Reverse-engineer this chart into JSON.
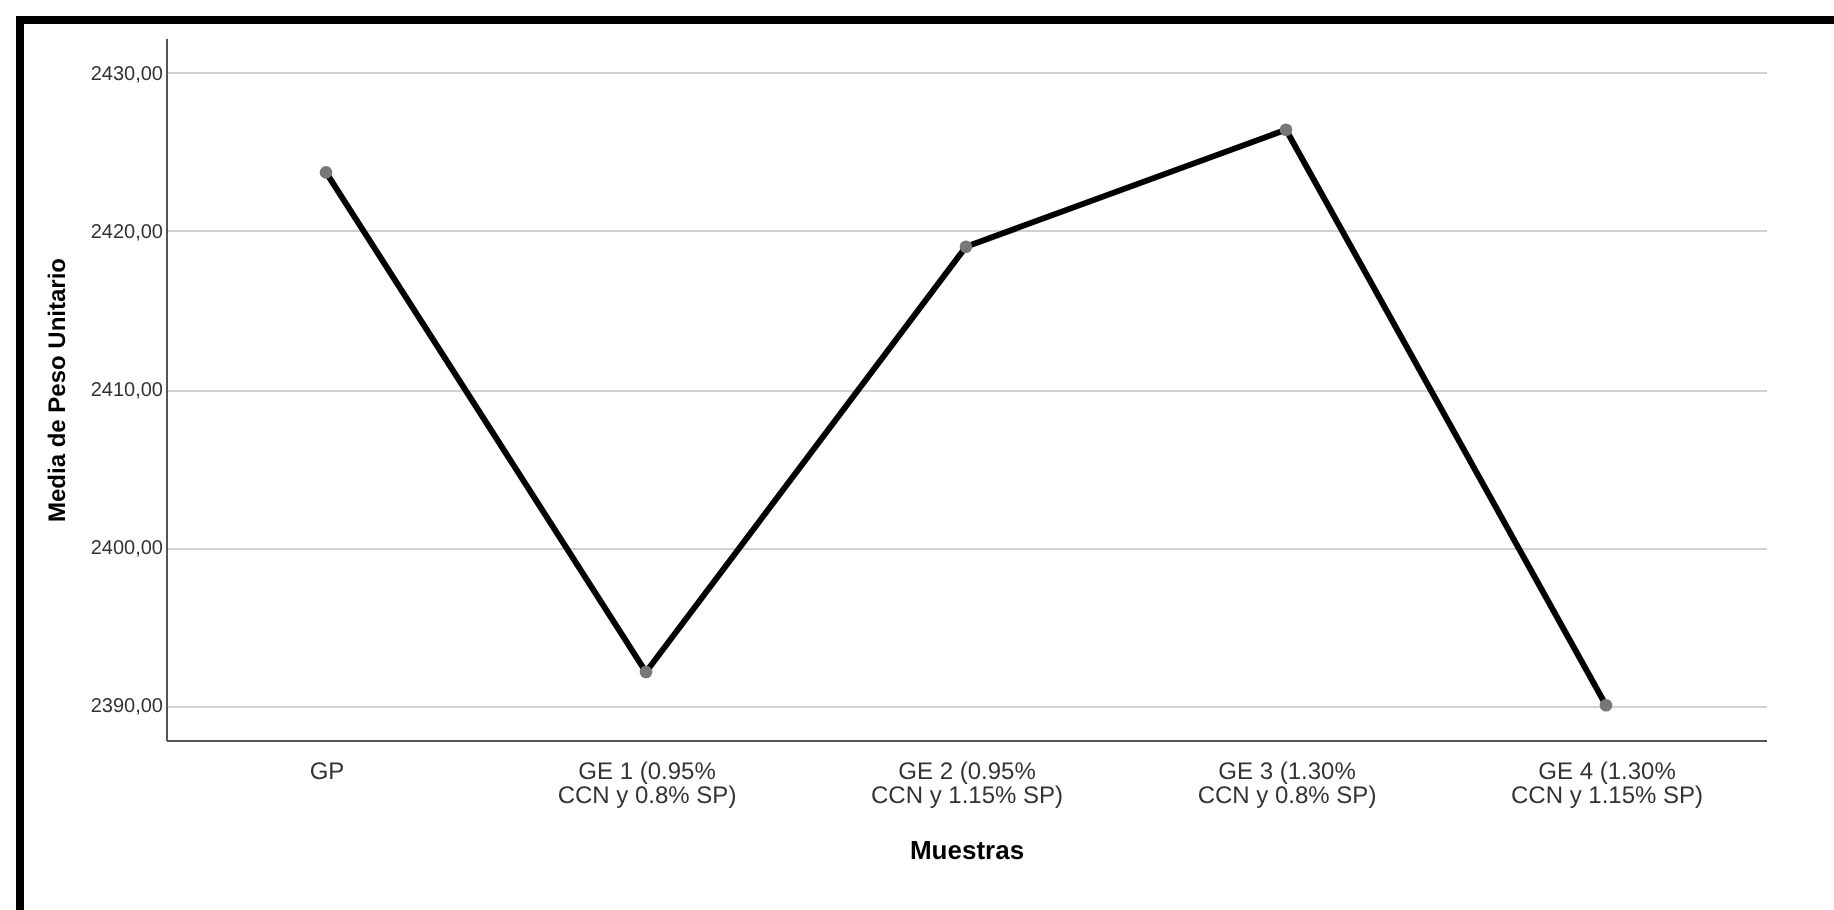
{
  "chart_data": {
    "type": "line",
    "xlabel": "Muestras",
    "ylabel": "Media de Peso Unitario",
    "categories": [
      "GP",
      "GE 1 (0.95%\nCCN y 0.8% SP)",
      "GE 2 (0.95%\nCCN y 1.15% SP)",
      "GE 3 (1.30%\nCCN y 0.8% SP)",
      "GE 4 (1.30%\nCCN y 1.15% SP)"
    ],
    "series": [
      {
        "color": "#000000",
        "values": [
          2423.7,
          2392.1,
          2419.0,
          2426.4,
          2390.0
        ]
      }
    ],
    "ylim": [
      2387.8,
      2432.2
    ],
    "yticks": [
      {
        "value": 2390,
        "label": "2390,00"
      },
      {
        "value": 2400,
        "label": "2400,00"
      },
      {
        "value": 2410,
        "label": "2410,00"
      },
      {
        "value": 2420,
        "label": "2420,00"
      },
      {
        "value": 2430,
        "label": "2430,00"
      }
    ],
    "grid": "y",
    "marker": "circle",
    "line_style": "solid"
  }
}
